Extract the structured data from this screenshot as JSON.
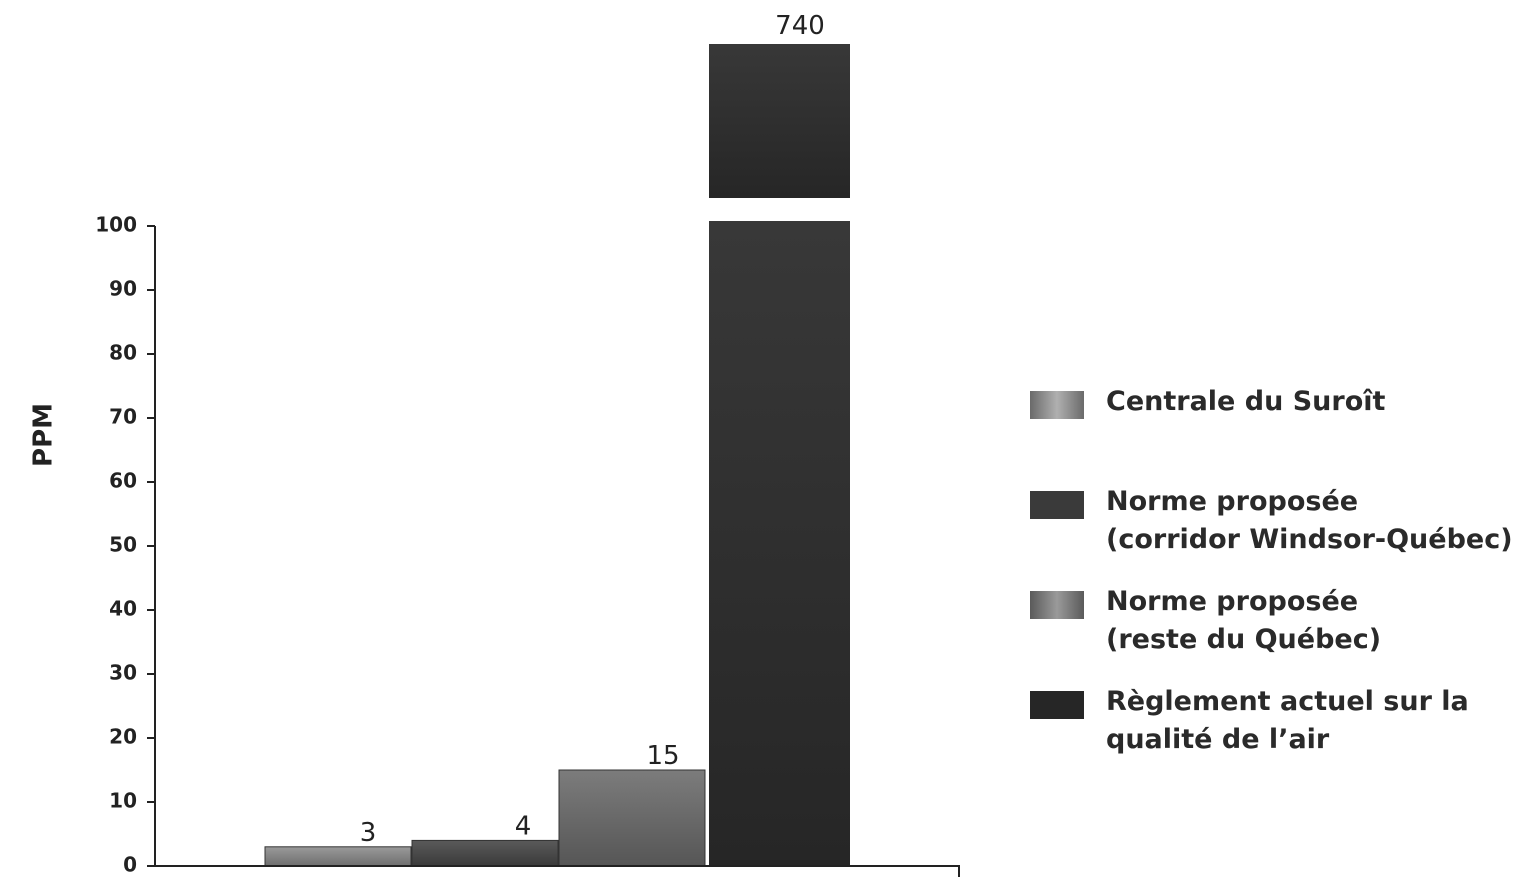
{
  "chart_data": {
    "type": "bar",
    "title": "",
    "xlabel": "",
    "ylabel": "PPM",
    "ylim": [
      0,
      100
    ],
    "yticks": [
      0,
      10,
      20,
      30,
      40,
      50,
      60,
      70,
      80,
      90,
      100
    ],
    "axis_break": true,
    "grid": false,
    "legend_placement": "right",
    "categories": [
      ""
    ],
    "series": [
      {
        "name": "Centrale du Suroît",
        "values": [
          3
        ],
        "color": "#8a8a8a"
      },
      {
        "name": "Norme proposée\n(corridor Windsor-Québec)",
        "values": [
          4
        ],
        "color": "#4a4a4a"
      },
      {
        "name": "Norme proposée\n(reste du Québec)",
        "values": [
          15
        ],
        "color": "#6a6a6a"
      },
      {
        "name": "Règlement actuel sur la\nqualité de l’air",
        "values": [
          740
        ],
        "color": "#2e2e2e"
      }
    ],
    "data_labels": [
      "3",
      "4",
      "15",
      "740"
    ]
  }
}
